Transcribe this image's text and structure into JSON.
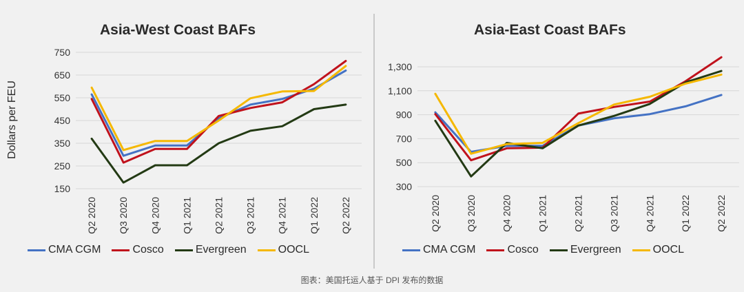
{
  "chart_data": [
    {
      "type": "line",
      "title": "Asia-West Coast BAFs",
      "ylabel": "Dollars per FEU",
      "xlabel": "",
      "categories": [
        "Q2 2020",
        "Q3 2020",
        "Q4 2020",
        "Q1 2021",
        "Q2 2021",
        "Q3 2021",
        "Q4 2021",
        "Q1 2022",
        "Q2 2022"
      ],
      "ylim": [
        150,
        750
      ],
      "yticks": [
        150,
        250,
        350,
        450,
        550,
        650,
        750
      ],
      "ytick_labels": [
        "150",
        "250",
        "350",
        "450",
        "550",
        "650",
        "750"
      ],
      "grid": true,
      "legend_position": "bottom",
      "series": [
        {
          "name": "CMA CGM",
          "color": "#4472c4",
          "values": [
            565,
            295,
            340,
            340,
            460,
            520,
            545,
            590,
            670
          ]
        },
        {
          "name": "Cosco",
          "color": "#c0121c",
          "values": [
            545,
            265,
            325,
            325,
            470,
            505,
            530,
            610,
            712
          ]
        },
        {
          "name": "Evergreen",
          "color": "#233a14",
          "values": [
            370,
            177,
            253,
            253,
            350,
            405,
            425,
            500,
            520
          ]
        },
        {
          "name": "OOCL",
          "color": "#f5b800",
          "values": [
            595,
            320,
            360,
            360,
            450,
            548,
            578,
            580,
            690
          ]
        }
      ]
    },
    {
      "type": "line",
      "title": "Asia-East Coast BAFs",
      "ylabel": "",
      "xlabel": "",
      "categories": [
        "Q2 2020",
        "Q3 2020",
        "Q4 2020",
        "Q1 2021",
        "Q2 2021",
        "Q3 2021",
        "Q4 2021",
        "Q1 2022",
        "Q2 2022"
      ],
      "ylim": [
        300,
        1300
      ],
      "yticks": [
        300,
        500,
        700,
        900,
        1100,
        1300
      ],
      "ytick_labels": [
        "300",
        "500",
        "700",
        "900",
        "1,100",
        "1,300"
      ],
      "grid": true,
      "legend_position": "bottom",
      "series": [
        {
          "name": "CMA CGM",
          "color": "#4472c4",
          "values": [
            920,
            590,
            640,
            640,
            810,
            870,
            905,
            970,
            1065
          ]
        },
        {
          "name": "Cosco",
          "color": "#c0121c",
          "values": [
            905,
            520,
            620,
            625,
            910,
            965,
            1010,
            1180,
            1380
          ]
        },
        {
          "name": "Evergreen",
          "color": "#233a14",
          "values": [
            850,
            385,
            665,
            620,
            810,
            890,
            990,
            1170,
            1265
          ]
        },
        {
          "name": "OOCL",
          "color": "#f5b800",
          "values": [
            1075,
            575,
            655,
            665,
            830,
            985,
            1050,
            1160,
            1235
          ]
        }
      ]
    }
  ],
  "caption": "图表：美国托运人基于 DPI 发布的数据"
}
